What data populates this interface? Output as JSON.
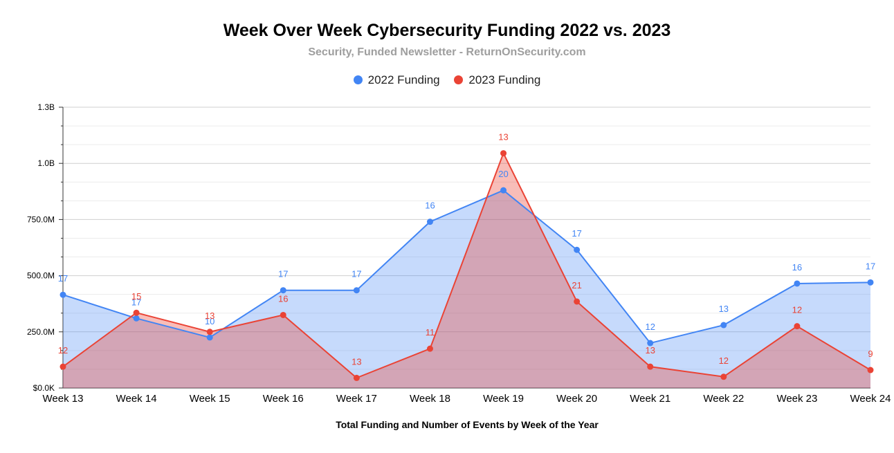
{
  "chart_data": {
    "type": "area",
    "title": "Week Over Week Cybersecurity Funding 2022 vs. 2023",
    "subtitle": "Security, Funded Newsletter - ReturnOnSecurity.com",
    "xlabel": "Total Funding and Number of Events by Week of the Year",
    "ylabel": "",
    "categories": [
      "Week 13",
      "Week 14",
      "Week 15",
      "Week 16",
      "Week 17",
      "Week 18",
      "Week 19",
      "Week 20",
      "Week 21",
      "Week 22",
      "Week 23",
      "Week 24"
    ],
    "ylim": [
      0,
      1250000000
    ],
    "yticks": [
      0,
      250000000,
      500000000,
      750000000,
      1000000000,
      1250000000
    ],
    "ytick_labels": [
      "$0.0K",
      "250.0M",
      "500.0M",
      "750.0M",
      "1.0B",
      "1.3B"
    ],
    "grid": true,
    "legend_position": "top",
    "series": [
      {
        "name": "2022 Funding",
        "color": "#4285f4",
        "fill": "#c5d8f7",
        "values": [
          415000000,
          310000000,
          225000000,
          435000000,
          435000000,
          740000000,
          880000000,
          615000000,
          200000000,
          280000000,
          465000000,
          470000000
        ],
        "labels": [
          "17",
          "17",
          "10",
          "17",
          "17",
          "16",
          "20",
          "17",
          "12",
          "13",
          "16",
          "17"
        ]
      },
      {
        "name": "2023 Funding",
        "color": "#ea4335",
        "fill": "#f4b5ad",
        "values": [
          95000000,
          335000000,
          250000000,
          325000000,
          45000000,
          175000000,
          1045000000,
          385000000,
          95000000,
          50000000,
          275000000,
          80000000
        ],
        "labels": [
          "12",
          "15",
          "13",
          "16",
          "13",
          "11",
          "13",
          "21",
          "13",
          "12",
          "12",
          "9"
        ]
      }
    ]
  }
}
